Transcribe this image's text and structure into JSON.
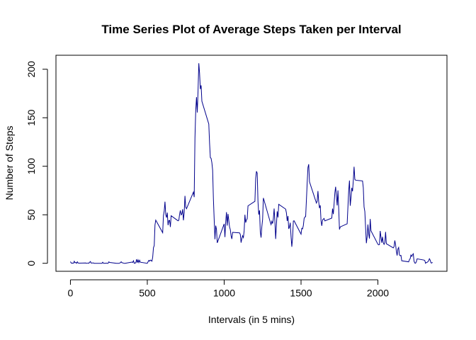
{
  "chart_data": {
    "type": "line",
    "title": "Time Series Plot of Average Steps Taken per Interval",
    "x_label": "Intervals (in 5 mins)",
    "y_label": "Number of Steps",
    "x": [
      0,
      5,
      10,
      15,
      20,
      25,
      30,
      35,
      40,
      45,
      50,
      55,
      100,
      105,
      110,
      115,
      120,
      125,
      130,
      135,
      140,
      145,
      150,
      155,
      200,
      205,
      210,
      215,
      220,
      225,
      230,
      235,
      240,
      245,
      250,
      255,
      300,
      305,
      310,
      315,
      320,
      325,
      330,
      335,
      340,
      345,
      350,
      355,
      400,
      405,
      410,
      415,
      420,
      425,
      430,
      435,
      440,
      445,
      450,
      455,
      500,
      505,
      510,
      515,
      520,
      525,
      530,
      535,
      540,
      545,
      550,
      555,
      600,
      605,
      610,
      615,
      620,
      625,
      630,
      635,
      640,
      645,
      650,
      655,
      700,
      705,
      710,
      715,
      720,
      725,
      730,
      735,
      740,
      745,
      750,
      755,
      800,
      805,
      810,
      815,
      820,
      825,
      830,
      835,
      840,
      845,
      850,
      855,
      900,
      905,
      910,
      915,
      920,
      925,
      930,
      935,
      940,
      945,
      950,
      955,
      1000,
      1005,
      1010,
      1015,
      1020,
      1025,
      1030,
      1035,
      1040,
      1045,
      1050,
      1055,
      1100,
      1105,
      1110,
      1115,
      1120,
      1125,
      1130,
      1135,
      1140,
      1145,
      1150,
      1155,
      1200,
      1205,
      1210,
      1215,
      1220,
      1225,
      1230,
      1235,
      1240,
      1245,
      1250,
      1255,
      1300,
      1305,
      1310,
      1315,
      1320,
      1325,
      1330,
      1335,
      1340,
      1345,
      1350,
      1355,
      1400,
      1405,
      1410,
      1415,
      1420,
      1425,
      1430,
      1435,
      1440,
      1445,
      1450,
      1455,
      1500,
      1505,
      1510,
      1515,
      1520,
      1525,
      1530,
      1535,
      1540,
      1545,
      1550,
      1555,
      1600,
      1605,
      1610,
      1615,
      1620,
      1625,
      1630,
      1635,
      1640,
      1645,
      1650,
      1655,
      1700,
      1705,
      1710,
      1715,
      1720,
      1725,
      1730,
      1735,
      1740,
      1745,
      1750,
      1755,
      1800,
      1805,
      1810,
      1815,
      1820,
      1825,
      1830,
      1835,
      1840,
      1845,
      1850,
      1855,
      1900,
      1905,
      1910,
      1915,
      1920,
      1925,
      1930,
      1935,
      1940,
      1945,
      1950,
      1955,
      2000,
      2005,
      2010,
      2015,
      2020,
      2025,
      2030,
      2035,
      2040,
      2045,
      2050,
      2055,
      2100,
      2105,
      2110,
      2115,
      2120,
      2125,
      2130,
      2135,
      2140,
      2145,
      2150,
      2155,
      2200,
      2205,
      2210,
      2215,
      2220,
      2225,
      2230,
      2235,
      2240,
      2245,
      2250,
      2255,
      2300,
      2305,
      2310,
      2315,
      2320,
      2325,
      2330,
      2335,
      2340,
      2345,
      2350,
      2355
    ],
    "values": [
      1.7,
      0.3,
      0.1,
      0.2,
      0.1,
      2.1,
      0.5,
      0.9,
      0,
      1.5,
      0.3,
      0.1,
      0.3,
      0,
      0.1,
      0.3,
      0,
      1.1,
      1.8,
      0.2,
      0.2,
      0.4,
      0.3,
      0,
      0,
      0,
      1.1,
      0,
      0,
      0.1,
      0,
      0.2,
      0,
      0,
      1.5,
      0.9,
      0,
      0,
      0,
      0,
      0.2,
      0.6,
      1.6,
      0.6,
      0.5,
      0.1,
      0,
      0,
      1.2,
      0.9,
      2.6,
      0,
      0.3,
      0.4,
      4.1,
      0.7,
      3.5,
      0.8,
      3.1,
      1.1,
      0,
      1.6,
      3,
      2.2,
      3.3,
      3,
      2.1,
      6.1,
      16,
      18.3,
      39.5,
      44.5,
      31.5,
      49.3,
      53.8,
      63.5,
      50,
      47.1,
      52.2,
      39.3,
      44,
      44.2,
      37.4,
      49,
      43.8,
      44.4,
      50.5,
      54.5,
      49.9,
      50.9,
      55.7,
      44.3,
      52.3,
      69.5,
      57.8,
      56.2,
      73.4,
      68.2,
      129.4,
      157.5,
      171.2,
      155.4,
      177.3,
      206.2,
      195.9,
      179.6,
      183.4,
      167,
      143.5,
      124,
      109.1,
      108.1,
      103.7,
      95.9,
      66.2,
      45.2,
      24.8,
      38.8,
      35,
      21.1,
      40.6,
      27,
      42.4,
      52.7,
      38.9,
      50.8,
      44.3,
      37.4,
      34.7,
      28.3,
      25.1,
      31.9,
      31.4,
      29.7,
      21.3,
      25.5,
      28.4,
      26.5,
      33.4,
      50,
      42,
      44.6,
      46,
      59.2,
      63.9,
      87.7,
      94.8,
      92.8,
      63.4,
      50.2,
      54.5,
      32.4,
      26.5,
      37.7,
      45,
      67.3,
      42.3,
      39.9,
      43.3,
      41,
      46.2,
      56.4,
      42.8,
      25.1,
      39.9,
      53.5,
      47.3,
      60.8,
      55.8,
      51.9,
      43.6,
      48.7,
      35.5,
      37.5,
      41.8,
      27.5,
      17.1,
      26.1,
      43.6,
      43.8,
      30,
      36.1,
      35.5,
      38.8,
      46,
      47.8,
      48.1,
      65.3,
      82.9,
      98.7,
      102.1,
      84,
      62.1,
      64.1,
      74.5,
      63.2,
      56.9,
      59.8,
      43.9,
      38.6,
      44.7,
      45.5,
      46.2,
      43.7,
      46.6,
      56.3,
      50.7,
      61.2,
      72.7,
      78.9,
      68.9,
      59.7,
      75.1,
      56.5,
      34.8,
      37.5,
      40.7,
      58,
      74.7,
      85.3,
      59.3,
      67.8,
      77.7,
      74.2,
      85.3,
      99.5,
      86.6,
      85.6,
      84.9,
      77.8,
      58,
      53.4,
      36.3,
      20.7,
      27.4,
      40,
      30.2,
      25.5,
      45.7,
      33.5,
      19.6,
      19,
      19.3,
      33.3,
      26.8,
      21.2,
      27.3,
      21.3,
      19.5,
      21.3,
      32.3,
      20.2,
      15.9,
      17.2,
      23.5,
      19.2,
      12.5,
      8,
      14.7,
      16.3,
      8.7,
      7.8,
      8.1,
      2.6,
      1.5,
      3.7,
      4.8,
      8.5,
      7.1,
      8.7,
      9.8,
      2.2,
      0.3,
      0.1,
      1.6,
      4.6,
      3.3,
      2.8,
      0,
      0.8,
      1,
      1.6,
      2.6,
      4.7,
      3.3,
      0.6,
      0.2,
      1.1
    ],
    "color": "#00008b",
    "xlim": [
      -94.2,
      2449.2
    ],
    "xticks": [
      0,
      500,
      1000,
      1500,
      2000
    ],
    "ylim": [
      -8.25,
      214.42
    ],
    "yticks": [
      0,
      50,
      100,
      150,
      200
    ]
  }
}
